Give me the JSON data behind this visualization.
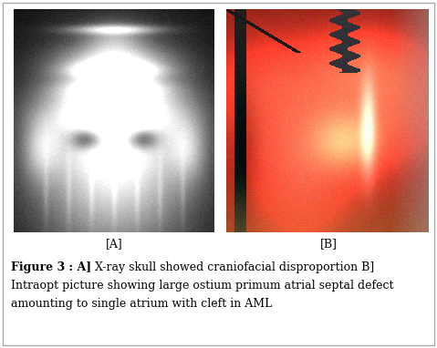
{
  "figure_width": 4.79,
  "figure_height": 3.82,
  "dpi": 100,
  "background_color": "#ffffff",
  "label_A": "[A]",
  "label_B": "[B]",
  "caption_bold": "Figure 3 : A]",
  "caption_rest_line1": " X-ray skull showed craniofacial disproportion B]",
  "caption_line2": "Intraopt picture showing large ostium primum atrial septal defect",
  "caption_line3": "amounting to single atrium with cleft in AML",
  "caption_fontsize": 9.0,
  "label_fontsize": 9.0,
  "border_color": "#aaaaaa"
}
